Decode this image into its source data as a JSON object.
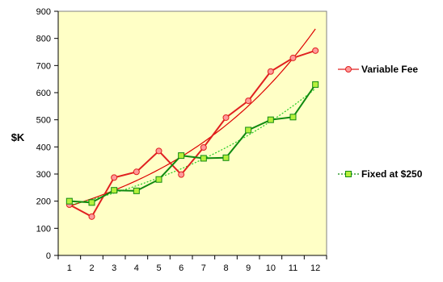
{
  "chart_data": {
    "type": "line",
    "categories": [
      "1",
      "2",
      "3",
      "4",
      "5",
      "6",
      "7",
      "8",
      "9",
      "10",
      "11",
      "12"
    ],
    "ylabel": "$K",
    "ylim": [
      0,
      900
    ],
    "yticks": [
      "0",
      "100",
      "200",
      "300",
      "400",
      "500",
      "600",
      "700",
      "800",
      "900"
    ],
    "grid": false,
    "plot_background": "#ffffc6",
    "legend_placement": "right",
    "series": [
      {
        "name": "Variable Fee",
        "values": [
          187,
          143,
          287,
          308,
          385,
          298,
          398,
          508,
          570,
          678,
          728,
          755
        ],
        "color": "#e02020",
        "marker": "circle",
        "marker_fill": "#ff9a9a",
        "trendline": {
          "color": "#dd0000",
          "from": 182,
          "to": 835,
          "style": "solid"
        }
      },
      {
        "name": "Fixed at $250",
        "values": [
          200,
          195,
          240,
          238,
          280,
          368,
          358,
          360,
          462,
          500,
          510,
          630
        ],
        "color": "#108a10",
        "marker": "square",
        "marker_fill": "#b6f03c",
        "trendline": {
          "color": "#22cc22",
          "from": 185,
          "to": 615,
          "style": "dotted"
        }
      }
    ]
  }
}
